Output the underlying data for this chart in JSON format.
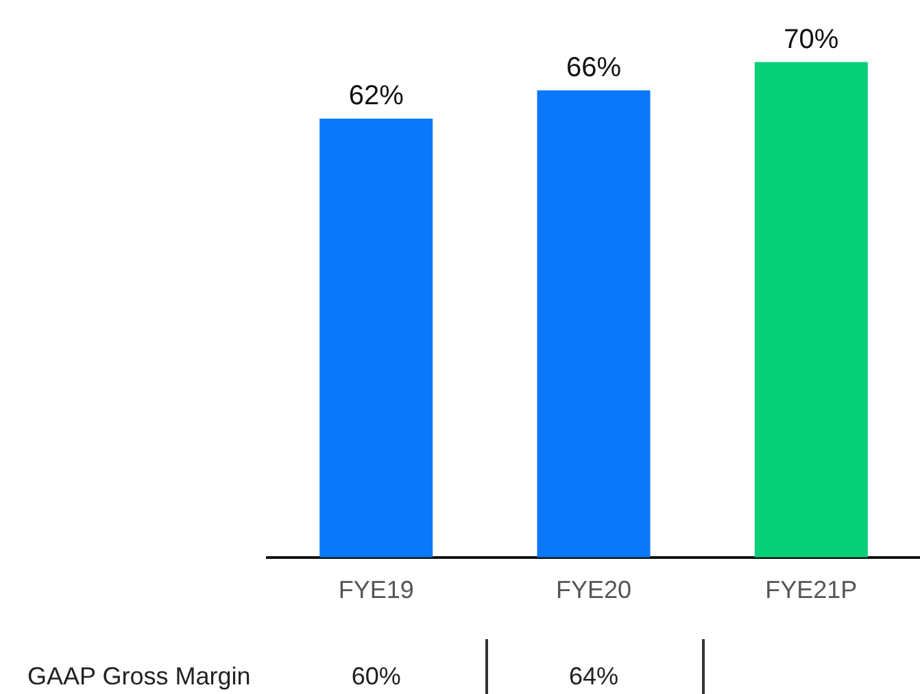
{
  "chart_data": {
    "type": "bar",
    "categories": [
      "FYE19",
      "FYE20",
      "FYE21P"
    ],
    "values": [
      62,
      66,
      70
    ],
    "colors": [
      "#0a78fa",
      "#0a78fa",
      "#06cf7a"
    ],
    "value_labels": [
      "62%",
      "66%",
      "70%"
    ],
    "grid": false,
    "legend": false,
    "tick_labels": "x",
    "annotations": [
      "GAAP Gross Margin",
      "60%",
      "64%"
    ]
  }
}
